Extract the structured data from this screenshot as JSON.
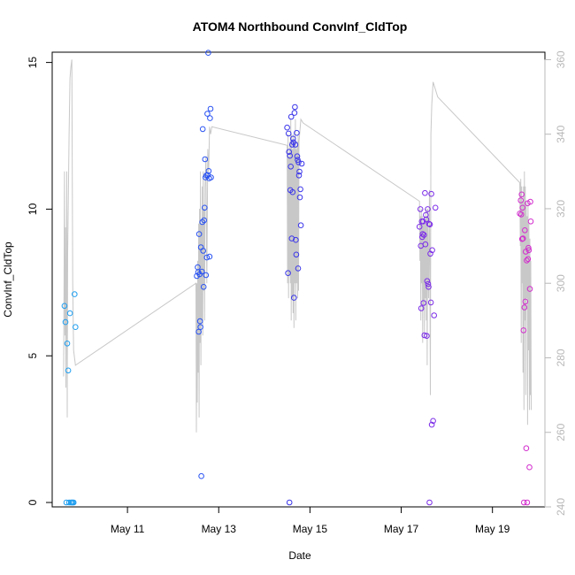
{
  "chart_data": {
    "type": "scatter",
    "title": "ATOM4 Northbound ConvInf_CldTop",
    "xlabel": "Date",
    "ylabel": "ConvInf_CldTop",
    "x_ticks": [
      "May 11",
      "May 13",
      "May 15",
      "May 17",
      "May 19"
    ],
    "x_tick_days": [
      11,
      13,
      15,
      17,
      19
    ],
    "xlim_days": [
      9.35,
      20.15
    ],
    "ylim": [
      -0.15,
      15.35
    ],
    "y_ticks": [
      0,
      5,
      10,
      15
    ],
    "y2_ticks": [
      240,
      260,
      280,
      300,
      320,
      340,
      360
    ],
    "y2_tick_labels": [
      "240",
      "260",
      "280",
      "300",
      "320",
      "340",
      "360"
    ],
    "y2lim": [
      240,
      362
    ],
    "grid": false,
    "line_color": "#c8c8c8",
    "series": [
      {
        "color": "#1e9ef0",
        "points": [
          [
            9.62,
            6.7
          ],
          [
            9.64,
            6.15
          ],
          [
            9.66,
            0.0
          ],
          [
            9.68,
            5.42
          ],
          [
            9.7,
            4.5
          ],
          [
            9.72,
            0.0
          ],
          [
            9.74,
            6.45
          ],
          [
            9.76,
            0.0
          ],
          [
            9.78,
            0.0
          ],
          [
            9.8,
            0.0
          ],
          [
            9.82,
            0.0
          ],
          [
            9.84,
            7.1
          ],
          [
            9.86,
            5.98
          ]
        ]
      },
      {
        "color": "#2a53f2",
        "points": [
          [
            12.52,
            7.72
          ],
          [
            12.54,
            8.02
          ],
          [
            12.55,
            7.85
          ],
          [
            12.56,
            5.82
          ],
          [
            12.57,
            9.15
          ],
          [
            12.58,
            7.78
          ],
          [
            12.59,
            6.18
          ],
          [
            12.6,
            5.98
          ],
          [
            12.61,
            8.7
          ],
          [
            12.62,
            0.9
          ],
          [
            12.63,
            7.87
          ],
          [
            12.64,
            9.56
          ],
          [
            12.65,
            12.73
          ],
          [
            12.66,
            8.58
          ],
          [
            12.67,
            7.35
          ],
          [
            12.68,
            9.62
          ],
          [
            12.69,
            10.05
          ],
          [
            12.7,
            11.7
          ],
          [
            12.71,
            11.08
          ],
          [
            12.72,
            7.75
          ],
          [
            12.73,
            11.15
          ],
          [
            12.74,
            8.35
          ],
          [
            12.75,
            13.25
          ],
          [
            12.76,
            11.16
          ],
          [
            12.77,
            15.33
          ],
          [
            12.78,
            11.3
          ],
          [
            12.79,
            11.05
          ],
          [
            12.8,
            8.38
          ],
          [
            12.81,
            13.1
          ],
          [
            12.82,
            13.42
          ],
          [
            12.83,
            11.08
          ]
        ]
      },
      {
        "color": "#3b36ea",
        "points": [
          [
            14.5,
            12.78
          ],
          [
            14.52,
            7.82
          ],
          [
            14.53,
            12.58
          ],
          [
            14.54,
            11.95
          ],
          [
            14.55,
            0.0
          ],
          [
            14.56,
            11.82
          ],
          [
            14.57,
            10.65
          ],
          [
            14.58,
            11.45
          ],
          [
            14.59,
            13.15
          ],
          [
            14.6,
            9.0
          ],
          [
            14.61,
            12.2
          ],
          [
            14.62,
            10.58
          ],
          [
            14.63,
            12.4
          ],
          [
            14.64,
            12.28
          ],
          [
            14.65,
            6.98
          ],
          [
            14.66,
            13.28
          ],
          [
            14.67,
            13.48
          ],
          [
            14.68,
            12.2
          ],
          [
            14.69,
            8.95
          ],
          [
            14.7,
            8.45
          ],
          [
            14.71,
            12.6
          ],
          [
            14.72,
            11.8
          ],
          [
            14.73,
            11.68
          ],
          [
            14.74,
            7.98
          ],
          [
            14.75,
            11.6
          ],
          [
            14.76,
            11.15
          ],
          [
            14.77,
            11.28
          ],
          [
            14.78,
            10.4
          ],
          [
            14.79,
            10.68
          ],
          [
            14.8,
            9.45
          ],
          [
            14.82,
            11.55
          ]
        ]
      },
      {
        "color": "#7b2ce8",
        "points": [
          [
            17.4,
            9.4
          ],
          [
            17.42,
            10.0
          ],
          [
            17.43,
            8.75
          ],
          [
            17.44,
            6.62
          ],
          [
            17.45,
            9.58
          ],
          [
            17.46,
            9.05
          ],
          [
            17.47,
            9.15
          ],
          [
            17.48,
            9.58
          ],
          [
            17.49,
            6.8
          ],
          [
            17.5,
            9.12
          ],
          [
            17.51,
            5.7
          ],
          [
            17.52,
            10.55
          ],
          [
            17.53,
            8.8
          ],
          [
            17.54,
            9.8
          ],
          [
            17.55,
            9.65
          ],
          [
            17.56,
            5.68
          ],
          [
            17.57,
            7.55
          ],
          [
            17.58,
            10.0
          ],
          [
            17.59,
            7.45
          ],
          [
            17.6,
            7.35
          ],
          [
            17.61,
            9.5
          ],
          [
            17.62,
            0.0
          ],
          [
            17.63,
            9.48
          ],
          [
            17.64,
            8.48
          ],
          [
            17.65,
            6.82
          ],
          [
            17.66,
            10.52
          ],
          [
            17.67,
            2.65
          ],
          [
            17.68,
            8.6
          ],
          [
            17.7,
            2.78
          ],
          [
            17.72,
            6.38
          ],
          [
            17.75,
            10.05
          ]
        ]
      },
      {
        "color": "#d22ccd",
        "points": [
          [
            19.6,
            9.85
          ],
          [
            19.62,
            10.3
          ],
          [
            19.63,
            9.82
          ],
          [
            19.64,
            10.5
          ],
          [
            19.65,
            8.98
          ],
          [
            19.66,
            10.05
          ],
          [
            19.67,
            9.0
          ],
          [
            19.68,
            5.87
          ],
          [
            19.69,
            0.0
          ],
          [
            19.7,
            6.65
          ],
          [
            19.71,
            9.28
          ],
          [
            19.72,
            6.85
          ],
          [
            19.73,
            8.55
          ],
          [
            19.74,
            1.85
          ],
          [
            19.75,
            8.25
          ],
          [
            19.76,
            0.0
          ],
          [
            19.77,
            10.2
          ],
          [
            19.78,
            8.3
          ],
          [
            19.79,
            8.68
          ],
          [
            19.8,
            8.6
          ],
          [
            19.81,
            1.2
          ],
          [
            19.82,
            7.28
          ],
          [
            19.83,
            10.25
          ],
          [
            19.84,
            9.58
          ]
        ]
      }
    ],
    "line": [
      [
        9.6,
        275
      ],
      [
        9.61,
        300
      ],
      [
        9.62,
        330
      ],
      [
        9.63,
        286
      ],
      [
        9.64,
        315
      ],
      [
        9.65,
        272
      ],
      [
        9.66,
        296
      ],
      [
        9.67,
        330
      ],
      [
        9.68,
        264
      ],
      [
        9.69,
        308
      ],
      [
        9.7,
        320
      ],
      [
        9.72,
        340
      ],
      [
        9.74,
        355
      ],
      [
        9.76,
        358
      ],
      [
        9.78,
        360
      ],
      [
        9.8,
        300
      ],
      [
        9.82,
        282
      ],
      [
        9.86,
        278
      ],
      [
        12.5,
        300
      ],
      [
        12.51,
        260
      ],
      [
        12.52,
        300
      ],
      [
        12.53,
        268
      ],
      [
        12.54,
        306
      ],
      [
        12.55,
        276
      ],
      [
        12.56,
        316
      ],
      [
        12.57,
        264
      ],
      [
        12.58,
        320
      ],
      [
        12.59,
        284
      ],
      [
        12.6,
        330
      ],
      [
        12.61,
        278
      ],
      [
        12.62,
        316
      ],
      [
        12.63,
        290
      ],
      [
        12.64,
        326
      ],
      [
        12.65,
        286
      ],
      [
        12.66,
        330
      ],
      [
        12.67,
        298
      ],
      [
        12.68,
        320
      ],
      [
        12.69,
        290
      ],
      [
        12.7,
        326
      ],
      [
        12.72,
        334
      ],
      [
        12.74,
        300
      ],
      [
        12.76,
        336
      ],
      [
        12.78,
        330
      ],
      [
        12.8,
        342
      ],
      [
        12.82,
        340
      ],
      [
        12.85,
        342
      ],
      [
        14.5,
        337
      ],
      [
        14.51,
        300
      ],
      [
        14.52,
        340
      ],
      [
        14.53,
        296
      ],
      [
        14.54,
        334
      ],
      [
        14.55,
        302
      ],
      [
        14.56,
        338
      ],
      [
        14.57,
        300
      ],
      [
        14.58,
        344
      ],
      [
        14.59,
        290
      ],
      [
        14.6,
        340
      ],
      [
        14.61,
        296
      ],
      [
        14.62,
        336
      ],
      [
        14.63,
        292
      ],
      [
        14.64,
        340
      ],
      [
        14.65,
        288
      ],
      [
        14.66,
        338
      ],
      [
        14.67,
        300
      ],
      [
        14.68,
        344
      ],
      [
        14.69,
        290
      ],
      [
        14.7,
        336
      ],
      [
        14.71,
        300
      ],
      [
        14.72,
        338
      ],
      [
        14.73,
        296
      ],
      [
        14.74,
        340
      ],
      [
        14.75,
        298
      ],
      [
        14.76,
        338
      ],
      [
        14.8,
        344
      ],
      [
        14.85,
        343
      ],
      [
        17.4,
        322
      ],
      [
        17.41,
        306
      ],
      [
        17.42,
        318
      ],
      [
        17.43,
        290
      ],
      [
        17.44,
        320
      ],
      [
        17.45,
        300
      ],
      [
        17.46,
        318
      ],
      [
        17.47,
        284
      ],
      [
        17.48,
        316
      ],
      [
        17.49,
        294
      ],
      [
        17.5,
        318
      ],
      [
        17.51,
        286
      ],
      [
        17.52,
        316
      ],
      [
        17.53,
        296
      ],
      [
        17.54,
        320
      ],
      [
        17.55,
        290
      ],
      [
        17.56,
        318
      ],
      [
        17.57,
        278
      ],
      [
        17.58,
        320
      ],
      [
        17.6,
        296
      ],
      [
        17.62,
        325
      ],
      [
        17.64,
        270
      ],
      [
        17.65,
        340
      ],
      [
        17.67,
        348
      ],
      [
        17.7,
        354
      ],
      [
        17.75,
        352
      ],
      [
        17.8,
        350
      ],
      [
        19.6,
        327
      ],
      [
        19.61,
        310
      ],
      [
        19.62,
        328
      ],
      [
        19.63,
        284
      ],
      [
        19.64,
        326
      ],
      [
        19.65,
        300
      ],
      [
        19.66,
        322
      ],
      [
        19.67,
        276
      ],
      [
        19.68,
        326
      ],
      [
        19.69,
        266
      ],
      [
        19.7,
        330
      ],
      [
        19.71,
        290
      ],
      [
        19.72,
        326
      ],
      [
        19.73,
        270
      ],
      [
        19.74,
        322
      ],
      [
        19.75,
        296
      ],
      [
        19.76,
        318
      ],
      [
        19.77,
        262
      ],
      [
        19.78,
        322
      ],
      [
        19.79,
        282
      ],
      [
        19.8,
        316
      ],
      [
        19.81,
        266
      ],
      [
        19.82,
        312
      ],
      [
        19.83,
        270
      ],
      [
        19.84,
        306
      ],
      [
        19.85,
        266
      ]
    ]
  }
}
